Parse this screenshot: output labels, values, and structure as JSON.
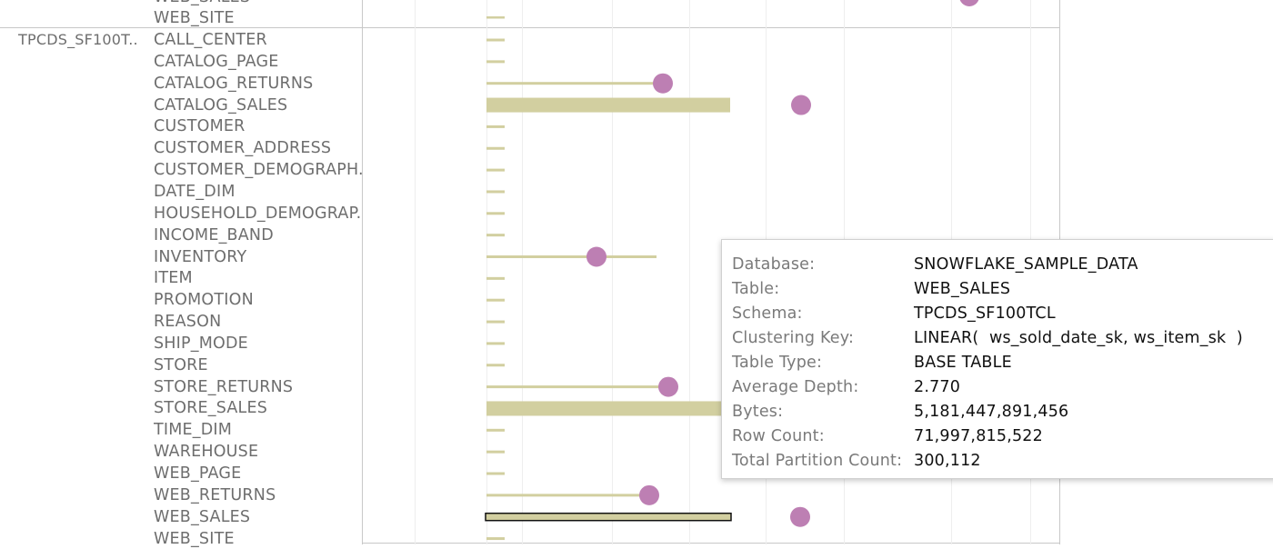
{
  "schema_label": "TPCDS_SF100T..",
  "top_partial_rows": [
    "WEB_SALES",
    "WEB_SITE"
  ],
  "rows": [
    {
      "label": "CALL_CENTER"
    },
    {
      "label": "CATALOG_PAGE"
    },
    {
      "label": "CATALOG_RETURNS"
    },
    {
      "label": "CATALOG_SALES"
    },
    {
      "label": "CUSTOMER"
    },
    {
      "label": "CUSTOMER_ADDRESS"
    },
    {
      "label": "CUSTOMER_DEMOGRAPH.."
    },
    {
      "label": "DATE_DIM"
    },
    {
      "label": "HOUSEHOLD_DEMOGRAP.."
    },
    {
      "label": "INCOME_BAND"
    },
    {
      "label": "INVENTORY"
    },
    {
      "label": "ITEM"
    },
    {
      "label": "PROMOTION"
    },
    {
      "label": "REASON"
    },
    {
      "label": "SHIP_MODE"
    },
    {
      "label": "STORE"
    },
    {
      "label": "STORE_RETURNS"
    },
    {
      "label": "STORE_SALES"
    },
    {
      "label": "TIME_DIM"
    },
    {
      "label": "WAREHOUSE"
    },
    {
      "label": "WEB_PAGE"
    },
    {
      "label": "WEB_RETURNS"
    },
    {
      "label": "WEB_SALES"
    },
    {
      "label": "WEB_SITE"
    }
  ],
  "colors": {
    "bar": "#d2cfa0",
    "dot": "#bd7fb3",
    "highlight_border": "#111111"
  },
  "tooltip": {
    "fields": [
      {
        "key": "Database:",
        "value": "SNOWFLAKE_SAMPLE_DATA"
      },
      {
        "key": "Table:",
        "value": "WEB_SALES"
      },
      {
        "key": "Schema:",
        "value": "TPCDS_SF100TCL"
      },
      {
        "key": "Clustering Key:",
        "value": "LINEAR(  ws_sold_date_sk, ws_item_sk  )"
      },
      {
        "key": "Table Type:",
        "value": "BASE TABLE"
      },
      {
        "key": "Average Depth:",
        "value": "2.770"
      },
      {
        "key": "Bytes:",
        "value": "5,181,447,891,456"
      },
      {
        "key": "Row Count:",
        "value": "71,997,815,522"
      },
      {
        "key": "Total Partition Count:",
        "value": "300,112"
      }
    ]
  }
}
